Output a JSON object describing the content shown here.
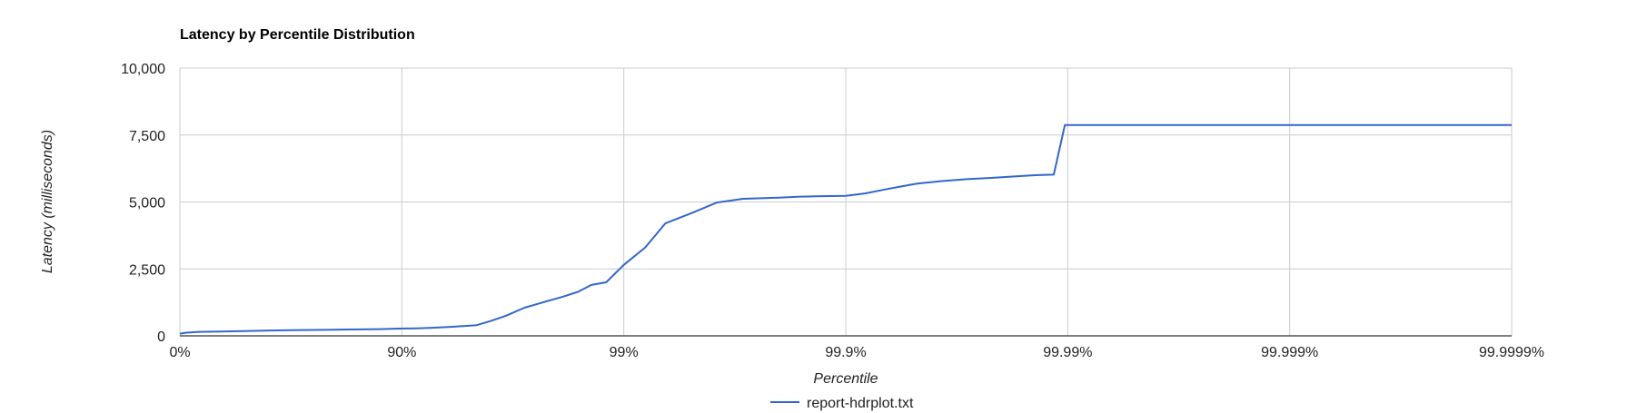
{
  "chart_data": {
    "type": "line",
    "title": "Latency by Percentile Distribution",
    "xlabel": "Percentile",
    "ylabel": "Latency (milliseconds)",
    "x_scale": "percentile-log (nines)",
    "x_ticks": [
      "0%",
      "90%",
      "99%",
      "99.9%",
      "99.99%",
      "99.999%",
      "99.9999%"
    ],
    "y_ticks": [
      "0",
      "2,500",
      "5,000",
      "7,500",
      "10,000"
    ],
    "y_tick_values": [
      0,
      2500,
      5000,
      7500,
      10000
    ],
    "ylim": [
      0,
      10000
    ],
    "xlim": [
      0,
      99.9999
    ],
    "grid": true,
    "legend_position": "bottom",
    "series": [
      {
        "name": "report-hdrplot.txt",
        "color": "#3366cc",
        "x": [
          0,
          6.6,
          18.1,
          34.9,
          48.8,
          60.8,
          68.4,
          75.0,
          79.9,
          84.3,
          87.5,
          89.6,
          91.4,
          92.7,
          94.1,
          95.4,
          96.0,
          96.6,
          97.2,
          97.8,
          98.1,
          98.4,
          98.6,
          98.8,
          99.0,
          99.2,
          99.35,
          99.51,
          99.62,
          99.71,
          99.76,
          99.8,
          99.84,
          99.863,
          99.9,
          99.918,
          99.932,
          99.942,
          99.952,
          99.963,
          99.9715,
          99.9778,
          99.9823,
          99.986,
          99.98845,
          99.9897,
          99.99,
          99.9999
        ],
        "y": [
          80,
          120,
          150,
          160,
          180,
          200,
          210,
          220,
          230,
          240,
          250,
          270,
          280,
          300,
          340,
          400,
          550,
          750,
          1050,
          1300,
          1450,
          1650,
          1900,
          2000,
          2650,
          3300,
          4200,
          4600,
          4980,
          5120,
          5140,
          5160,
          5200,
          5210,
          5230,
          5320,
          5450,
          5560,
          5680,
          5780,
          5850,
          5900,
          5950,
          6000,
          6020,
          7870,
          7870,
          7870
        ]
      }
    ]
  }
}
